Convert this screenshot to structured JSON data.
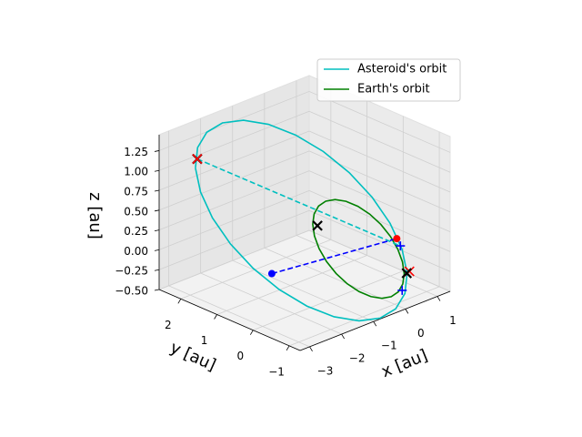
{
  "chart_data": {
    "type": "line3d",
    "xlabel": "x [au]",
    "ylabel": "y [au]",
    "zlabel": "z [au]",
    "xlim": [
      -3.3,
      1.4
    ],
    "ylim": [
      -1.3,
      2.6
    ],
    "zlim": [
      -0.5,
      1.45
    ],
    "xticks": [
      {
        "value": -3,
        "label": "−3"
      },
      {
        "value": -2,
        "label": "−2"
      },
      {
        "value": -1,
        "label": "−1"
      },
      0,
      1
    ],
    "yticks": [
      {
        "value": -1,
        "label": "−1"
      },
      0,
      1,
      2
    ],
    "zticks": [
      {
        "value": -0.5,
        "label": "−0.50"
      },
      {
        "value": -0.25,
        "label": "−0.25"
      },
      {
        "value": 0,
        "label": "0.00"
      },
      0.25,
      {
        "value": 0.5,
        "label": "0.50"
      },
      0.75,
      {
        "value": 1,
        "label": "1.00"
      },
      1.25
    ],
    "grid": true,
    "legend": "upper right",
    "series": [
      {
        "name": "Asteroid's orbit",
        "color": "#00bfbf",
        "x": [
          -2.651,
          -2.253,
          -1.766,
          -1.223,
          -0.659,
          -0.113,
          0.377,
          0.779,
          1.063,
          1.211,
          1.214,
          1.071,
          0.791,
          0.393,
          -0.094,
          -0.637,
          -1.201,
          -1.747,
          -2.237,
          -2.639,
          -2.923,
          -3.071,
          -3.074,
          -2.931,
          -2.651
        ],
        "y": [
          2.169,
          2.461,
          2.636,
          2.684,
          2.6,
          2.392,
          2.072,
          1.663,
          1.192,
          0.692,
          0.198,
          -0.259,
          -0.647,
          -0.939,
          -1.114,
          -1.161,
          -1.078,
          -0.87,
          -0.55,
          -0.141,
          0.33,
          0.83,
          1.325,
          1.781,
          2.169
        ],
        "z": [
          1.013,
          1.149,
          1.231,
          1.253,
          1.214,
          1.117,
          0.967,
          0.777,
          0.557,
          0.323,
          0.092,
          -0.121,
          -0.302,
          -0.438,
          -0.52,
          -0.542,
          -0.503,
          -0.406,
          -0.257,
          -0.066,
          0.154,
          0.387,
          0.618,
          0.832,
          1.013
        ]
      },
      {
        "name": "Earth's orbit",
        "color": "#008000",
        "x": [
          1,
          0.966,
          0.866,
          0.707,
          0.5,
          0.259,
          0,
          -0.259,
          -0.5,
          -0.707,
          -0.866,
          -0.966,
          -1,
          -0.966,
          -0.866,
          -0.707,
          -0.5,
          -0.259,
          0,
          0.259,
          0.5,
          0.707,
          0.866,
          0.966,
          1
        ],
        "y": [
          0,
          0.235,
          0.453,
          0.641,
          0.785,
          0.875,
          0.906,
          0.875,
          0.785,
          0.641,
          0.453,
          0.235,
          0,
          -0.235,
          -0.453,
          -0.641,
          -0.785,
          -0.875,
          -0.906,
          -0.875,
          -0.785,
          -0.641,
          -0.453,
          -0.235,
          0
        ],
        "z": [
          0,
          0.11,
          0.212,
          0.299,
          0.366,
          0.409,
          0.423,
          0.409,
          0.366,
          0.299,
          0.212,
          0.11,
          0,
          -0.11,
          -0.212,
          -0.299,
          -0.366,
          -0.409,
          -0.423,
          -0.409,
          -0.366,
          -0.299,
          -0.212,
          -0.11,
          0
        ]
      }
    ],
    "dashed_lines": [
      {
        "color": "#00bfbf",
        "x": [
          -2.454,
          1.085
        ],
        "y": [
          2.293,
          -0.202
        ],
        "z": [
          1.071,
          -0.094
        ]
      },
      {
        "color": "#0000ff",
        "x": [
          -2.553,
          1.119
        ],
        "y": [
          0.142,
          -0.072
        ],
        "z": [
          0.066,
          -0.033
        ]
      }
    ],
    "markers": [
      {
        "marker": "x",
        "color": "#000000",
        "x": -2.454,
        "y": 2.293,
        "z": 1.071
      },
      {
        "marker": "x",
        "color": "#ff0000",
        "x": -2.454,
        "y": 2.293,
        "z": 1.071
      },
      {
        "marker": "x",
        "color": "#000000",
        "x": -0.617,
        "y": 0.589,
        "z": 0.275
      },
      {
        "marker": "x",
        "color": "#ff0000",
        "x": 0.879,
        "y": -0.635,
        "z": -0.297
      },
      {
        "marker": "x",
        "color": "#000000",
        "x": 0.781,
        "y": -0.646,
        "z": -0.302
      },
      {
        "marker": "o",
        "color": "#ff0000",
        "x": 1.119,
        "y": -0.072,
        "z": -0.033
      },
      {
        "marker": "o",
        "color": "#0000ff",
        "x": -2.553,
        "y": 0.142,
        "z": 0.066
      },
      {
        "marker": "+",
        "color": "#0000ff",
        "x": 1.085,
        "y": -0.202,
        "z": -0.094
      },
      {
        "marker": "+",
        "color": "#0000ff",
        "x": 0.377,
        "y": -0.876,
        "z": -0.409
      }
    ]
  }
}
